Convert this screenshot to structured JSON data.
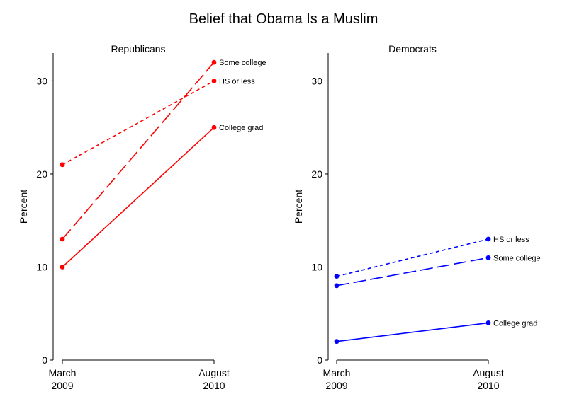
{
  "chart_data": {
    "type": "line",
    "title": "Belief that Obama Is a Muslim",
    "ylabel": "Percent",
    "ylim": [
      0,
      33
    ],
    "yticks": [
      0,
      10,
      20,
      30
    ],
    "x_ticks": [
      {
        "line1": "March",
        "line2": "2009"
      },
      {
        "line1": "August",
        "line2": "2010"
      }
    ],
    "panels": [
      {
        "title": "Republicans",
        "color": "#ff0000",
        "series": [
          {
            "name": "Some college",
            "dash": "long",
            "values": [
              13,
              32
            ]
          },
          {
            "name": "HS or less",
            "dash": "short",
            "values": [
              21,
              30
            ]
          },
          {
            "name": "College grad",
            "dash": "solid",
            "values": [
              10,
              25
            ]
          }
        ]
      },
      {
        "title": "Democrats",
        "color": "#0000ff",
        "series": [
          {
            "name": "HS or less",
            "dash": "short",
            "values": [
              9,
              13
            ]
          },
          {
            "name": "Some college",
            "dash": "long",
            "values": [
              8,
              11
            ]
          },
          {
            "name": "College grad",
            "dash": "solid",
            "values": [
              2,
              4
            ]
          }
        ]
      }
    ]
  }
}
